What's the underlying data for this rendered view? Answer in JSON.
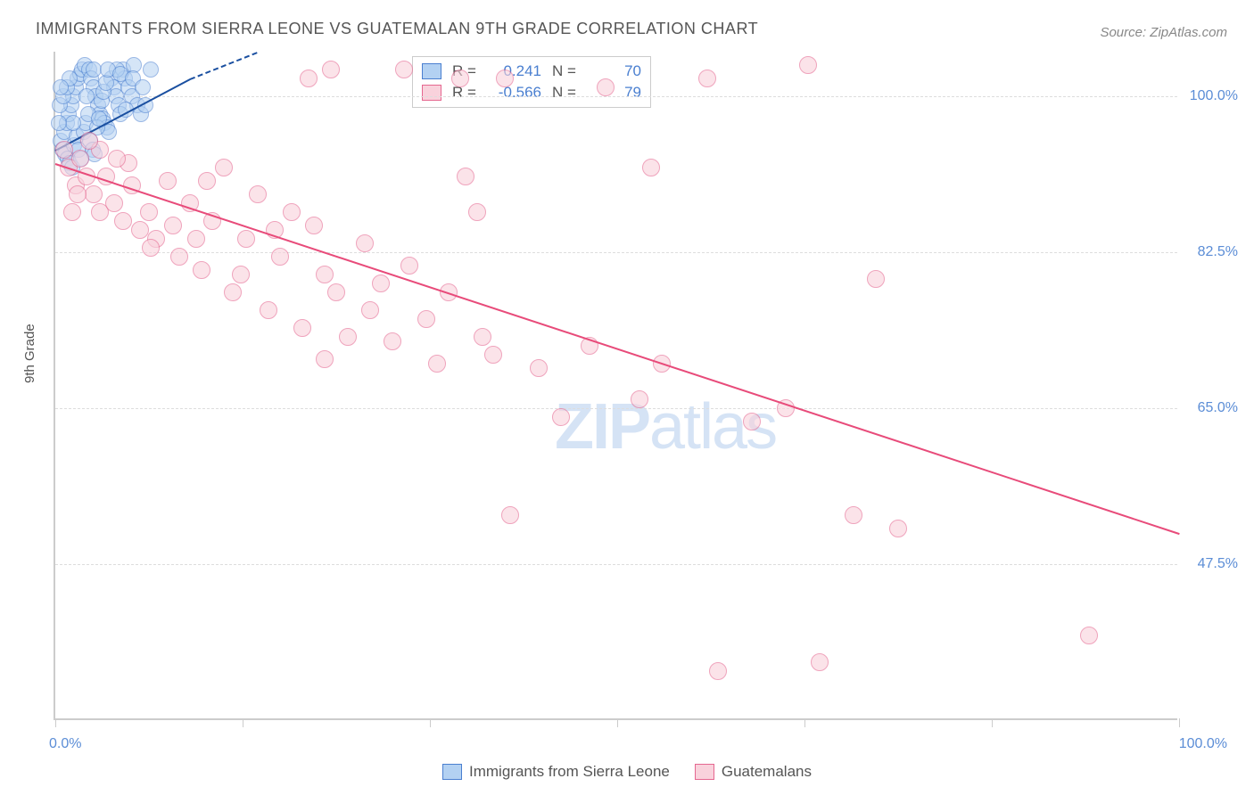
{
  "title": "IMMIGRANTS FROM SIERRA LEONE VS GUATEMALAN 9TH GRADE CORRELATION CHART",
  "source": "Source: ZipAtlas.com",
  "watermark_bold": "ZIP",
  "watermark_light": "atlas",
  "ylabel": "9th Grade",
  "chart": {
    "type": "scatter",
    "xlim": [
      0,
      100
    ],
    "ylim": [
      30,
      105
    ],
    "yticks": [
      {
        "v": 100.0,
        "label": "100.0%"
      },
      {
        "v": 82.5,
        "label": "82.5%"
      },
      {
        "v": 65.0,
        "label": "65.0%"
      },
      {
        "v": 47.5,
        "label": "47.5%"
      }
    ],
    "xticks_labels": {
      "left": "0.0%",
      "right": "100.0%"
    },
    "xtick_positions": [
      0,
      16.67,
      33.33,
      50,
      66.67,
      83.33,
      100
    ],
    "background_color": "#ffffff",
    "grid_color": "#dddddd"
  },
  "series": [
    {
      "name": "Immigrants from Sierra Leone",
      "marker_fill": "#b3d1f2",
      "marker_stroke": "#4a7fd0",
      "marker_opacity": 0.55,
      "marker_size": 18,
      "trend_color": "#1a4fa0",
      "trend": {
        "x1": 0,
        "y1": 94,
        "x2": 12,
        "y2": 102,
        "dashed_extend_x": 18,
        "dashed_extend_y": 105
      },
      "R": "0.241",
      "N": "70",
      "points": [
        [
          0.5,
          95
        ],
        [
          0.8,
          96
        ],
        [
          1.0,
          97
        ],
        [
          1.2,
          98
        ],
        [
          1.4,
          99
        ],
        [
          1.6,
          100
        ],
        [
          1.8,
          101
        ],
        [
          2.0,
          102
        ],
        [
          2.2,
          102.5
        ],
        [
          2.4,
          103
        ],
        [
          2.6,
          103.5
        ],
        [
          3.0,
          103
        ],
        [
          3.2,
          102
        ],
        [
          3.4,
          101
        ],
        [
          3.6,
          100
        ],
        [
          3.8,
          99
        ],
        [
          4.0,
          98
        ],
        [
          4.2,
          97.5
        ],
        [
          4.4,
          97
        ],
        [
          4.6,
          96.5
        ],
        [
          4.8,
          96
        ],
        [
          5.0,
          102
        ],
        [
          5.2,
          101
        ],
        [
          5.4,
          100
        ],
        [
          5.6,
          99
        ],
        [
          5.8,
          98
        ],
        [
          6.0,
          103
        ],
        [
          6.2,
          102
        ],
        [
          6.5,
          101
        ],
        [
          6.8,
          100
        ],
        [
          7.0,
          103.5
        ],
        [
          7.3,
          99
        ],
        [
          7.6,
          98
        ],
        [
          0.6,
          94
        ],
        [
          0.9,
          93.5
        ],
        [
          1.1,
          93
        ],
        [
          1.3,
          92.5
        ],
        [
          1.5,
          92
        ],
        [
          1.7,
          94.5
        ],
        [
          1.9,
          95.5
        ],
        [
          2.1,
          94
        ],
        [
          2.3,
          93
        ],
        [
          2.5,
          96
        ],
        [
          2.7,
          97
        ],
        [
          2.9,
          98
        ],
        [
          3.1,
          95
        ],
        [
          3.3,
          94
        ],
        [
          3.5,
          93.5
        ],
        [
          3.7,
          96.5
        ],
        [
          3.9,
          97.5
        ],
        [
          4.1,
          99.5
        ],
        [
          4.3,
          100.5
        ],
        [
          4.5,
          101.5
        ],
        [
          5.5,
          103
        ],
        [
          6.3,
          98.5
        ],
        [
          0.4,
          99
        ],
        [
          0.7,
          100
        ],
        [
          1.0,
          101
        ],
        [
          1.3,
          102
        ],
        [
          1.6,
          97
        ],
        [
          8.0,
          99
        ],
        [
          8.5,
          103
        ],
        [
          2.8,
          100
        ],
        [
          3.4,
          103
        ],
        [
          4.7,
          103
        ],
        [
          5.8,
          102.5
        ],
        [
          6.9,
          102
        ],
        [
          7.8,
          101
        ],
        [
          0.3,
          97
        ],
        [
          0.5,
          101
        ]
      ]
    },
    {
      "name": "Guatemalans",
      "marker_fill": "#f9d2dc",
      "marker_stroke": "#e56790",
      "marker_opacity": 0.6,
      "marker_size": 20,
      "trend_color": "#e84b7a",
      "trend": {
        "x1": 0,
        "y1": 92.5,
        "x2": 100,
        "y2": 51
      },
      "R": "-0.566",
      "N": "79",
      "points": [
        [
          0.8,
          94
        ],
        [
          1.2,
          92
        ],
        [
          1.8,
          90
        ],
        [
          2.2,
          93
        ],
        [
          2.8,
          91
        ],
        [
          3.4,
          89
        ],
        [
          4.0,
          87
        ],
        [
          4.5,
          91
        ],
        [
          5.2,
          88
        ],
        [
          6.0,
          86
        ],
        [
          6.8,
          90
        ],
        [
          7.5,
          85
        ],
        [
          8.3,
          87
        ],
        [
          9.0,
          84
        ],
        [
          10.0,
          90.5
        ],
        [
          11.0,
          82
        ],
        [
          12.0,
          88
        ],
        [
          13.0,
          80.5
        ],
        [
          14.0,
          86
        ],
        [
          15.0,
          92
        ],
        [
          15.8,
          78
        ],
        [
          17.0,
          84
        ],
        [
          18.0,
          89
        ],
        [
          19.0,
          76
        ],
        [
          20.0,
          82
        ],
        [
          21.0,
          87
        ],
        [
          22.0,
          74
        ],
        [
          23.0,
          85.5
        ],
        [
          24.0,
          80
        ],
        [
          25.0,
          78
        ],
        [
          26.0,
          73
        ],
        [
          27.5,
          83.5
        ],
        [
          28.0,
          76
        ],
        [
          29.0,
          79
        ],
        [
          30.0,
          72.5
        ],
        [
          31.5,
          81
        ],
        [
          33.0,
          75
        ],
        [
          34.0,
          70
        ],
        [
          35.0,
          78
        ],
        [
          22.5,
          102
        ],
        [
          24.5,
          103
        ],
        [
          31.0,
          103
        ],
        [
          36.0,
          102
        ],
        [
          36.5,
          91
        ],
        [
          37.5,
          87
        ],
        [
          38.0,
          73
        ],
        [
          39.0,
          71
        ],
        [
          40.0,
          102
        ],
        [
          67.0,
          103.5
        ],
        [
          49.0,
          101
        ],
        [
          43.0,
          69.5
        ],
        [
          45.0,
          64
        ],
        [
          47.5,
          72
        ],
        [
          52.0,
          66
        ],
        [
          54.0,
          70
        ],
        [
          53.0,
          92
        ],
        [
          58.0,
          102
        ],
        [
          62.0,
          63.5
        ],
        [
          65.0,
          65
        ],
        [
          73.0,
          79.5
        ],
        [
          92.0,
          39.5
        ],
        [
          68.0,
          36.5
        ],
        [
          59.0,
          35.5
        ],
        [
          71.0,
          53
        ],
        [
          75.0,
          51.5
        ],
        [
          40.5,
          53
        ],
        [
          24.0,
          70.5
        ],
        [
          19.5,
          85
        ],
        [
          10.5,
          85.5
        ],
        [
          8.5,
          83
        ],
        [
          6.5,
          92.5
        ],
        [
          12.5,
          84
        ],
        [
          16.5,
          80
        ],
        [
          13.5,
          90.5
        ],
        [
          5.5,
          93
        ],
        [
          4.0,
          94
        ],
        [
          3.0,
          95
        ],
        [
          2.0,
          89
        ],
        [
          1.5,
          87
        ]
      ]
    }
  ],
  "legend_top_labels": {
    "R": "R =",
    "N": "N ="
  },
  "axis_text_color": "#5b8dd6"
}
